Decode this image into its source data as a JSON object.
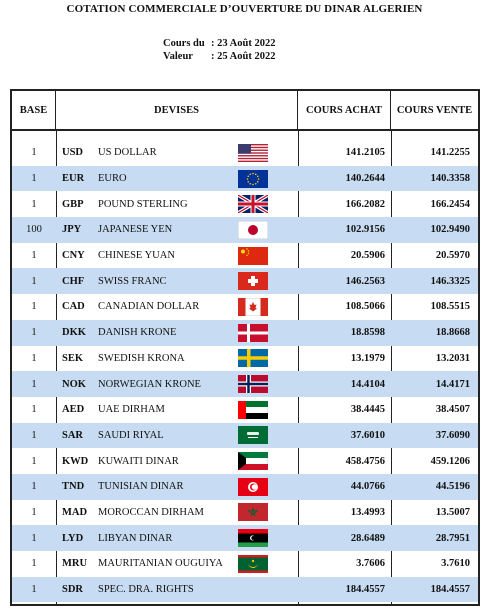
{
  "title": "COTATION COMMERCIALE D’OUVERTURE DU DINAR ALGERIEN",
  "cours_label": "Cours du",
  "cours_value": ": 23 Août 2022",
  "valeur_label": "Valeur",
  "valeur_value": ": 25 Août 2022",
  "headers": {
    "base": "BASE",
    "devises": "DEVISES",
    "achat": "COURS ACHAT",
    "vente": "COURS VENTE"
  },
  "rows": [
    {
      "base": "1",
      "code": "USD",
      "name": "US DOLLAR",
      "flag": "us-flag-icon",
      "achat": "141.2105",
      "vente": "141.2255"
    },
    {
      "base": "1",
      "code": "EUR",
      "name": "EURO",
      "flag": "eu-flag-icon",
      "achat": "140.2644",
      "vente": "140.3358"
    },
    {
      "base": "1",
      "code": "GBP",
      "name": "POUND STERLING",
      "flag": "uk-flag-icon",
      "achat": "166.2082",
      "vente": "166.2454"
    },
    {
      "base": "100",
      "code": "JPY",
      "name": "JAPANESE YEN",
      "flag": "japan-flag-icon",
      "achat": "102.9156",
      "vente": "102.9490"
    },
    {
      "base": "1",
      "code": "CNY",
      "name": "CHINESE YUAN",
      "flag": "china-flag-icon",
      "achat": "20.5906",
      "vente": "20.5970"
    },
    {
      "base": "1",
      "code": "CHF",
      "name": "SWISS FRANC",
      "flag": "swiss-flag-icon",
      "achat": "146.2563",
      "vente": "146.3325"
    },
    {
      "base": "1",
      "code": "CAD",
      "name": "CANADIAN DOLLAR",
      "flag": "canada-flag-icon",
      "achat": "108.5066",
      "vente": "108.5515"
    },
    {
      "base": "1",
      "code": "DKK",
      "name": "DANISH KRONE",
      "flag": "denmark-flag-icon",
      "achat": "18.8598",
      "vente": "18.8668"
    },
    {
      "base": "1",
      "code": "SEK",
      "name": "SWEDISH KRONA",
      "flag": "sweden-flag-icon",
      "achat": "13.1979",
      "vente": "13.2031"
    },
    {
      "base": "1",
      "code": "NOK",
      "name": "NORWEGIAN KRONE",
      "flag": "norway-flag-icon",
      "achat": "14.4104",
      "vente": "14.4171"
    },
    {
      "base": "1",
      "code": "AED",
      "name": "UAE DIRHAM",
      "flag": "uae-flag-icon",
      "achat": "38.4445",
      "vente": "38.4507"
    },
    {
      "base": "1",
      "code": "SAR",
      "name": "SAUDI RIYAL",
      "flag": "saudi-flag-icon",
      "achat": "37.6010",
      "vente": "37.6090"
    },
    {
      "base": "1",
      "code": "KWD",
      "name": "KUWAITI DINAR",
      "flag": "kuwait-flag-icon",
      "achat": "458.4756",
      "vente": "459.1206"
    },
    {
      "base": "1",
      "code": "TND",
      "name": "TUNISIAN DINAR",
      "flag": "tunisia-flag-icon",
      "achat": "44.0766",
      "vente": "44.5196"
    },
    {
      "base": "1",
      "code": "MAD",
      "name": "MOROCCAN DIRHAM",
      "flag": "morocco-flag-icon",
      "achat": "13.4993",
      "vente": "13.5007"
    },
    {
      "base": "1",
      "code": "LYD",
      "name": "LIBYAN DINAR",
      "flag": "libya-flag-icon",
      "achat": "28.6489",
      "vente": "28.7951"
    },
    {
      "base": "1",
      "code": "MRU",
      "name": "MAURITANIAN OUGUIYA",
      "flag": "mauritania-flag-icon",
      "achat": "3.7606",
      "vente": "3.7610"
    },
    {
      "base": "1",
      "code": "SDR",
      "name": "SPEC. DRA. RIGHTS",
      "flag": "",
      "achat": "184.4557",
      "vente": "184.4557"
    }
  ]
}
